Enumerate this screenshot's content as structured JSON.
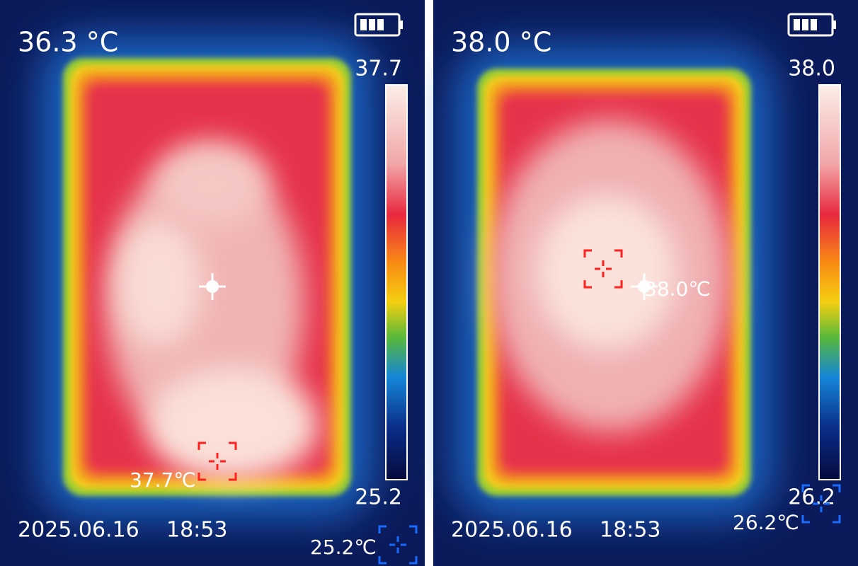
{
  "panels": [
    {
      "center_temp": "36.3 °C",
      "scale_max": "37.7",
      "scale_min": "25.2",
      "date": "2025.06.16",
      "time": "18:53",
      "hot_label": "37.7℃",
      "cold_label": "25.2℃"
    },
    {
      "center_temp": "38.0 °C",
      "scale_max": "38.0",
      "scale_min": "26.2",
      "date": "2025.06.16",
      "time": "18:53",
      "hot_label": "38.0℃",
      "cold_label": "26.2℃"
    }
  ]
}
